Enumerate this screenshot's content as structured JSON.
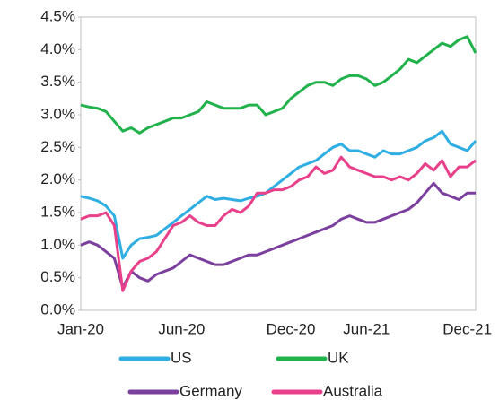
{
  "chart_data": {
    "type": "line",
    "categories": [
      "Jan-20",
      null,
      null,
      null,
      null,
      null,
      null,
      null,
      null,
      null,
      null,
      null,
      "Jun-20",
      null,
      null,
      null,
      null,
      null,
      null,
      null,
      null,
      null,
      null,
      null,
      null,
      "Dec-20",
      null,
      null,
      null,
      null,
      null,
      null,
      null,
      null,
      "Jun-21",
      null,
      null,
      null,
      null,
      null,
      null,
      null,
      null,
      null,
      null,
      null,
      "Dec-21",
      null
    ],
    "series": [
      {
        "name": "US",
        "color": "#2eaee3",
        "values": [
          1.75,
          1.72,
          1.68,
          1.6,
          1.45,
          0.8,
          1.0,
          1.1,
          1.12,
          1.15,
          1.25,
          1.35,
          1.45,
          1.55,
          1.65,
          1.75,
          1.7,
          1.72,
          1.7,
          1.68,
          1.72,
          1.75,
          1.8,
          1.9,
          2.0,
          2.1,
          2.2,
          2.25,
          2.3,
          2.4,
          2.5,
          2.55,
          2.45,
          2.45,
          2.4,
          2.35,
          2.45,
          2.4,
          2.4,
          2.45,
          2.5,
          2.6,
          2.65,
          2.75,
          2.55,
          2.5,
          2.45,
          2.6
        ]
      },
      {
        "name": "UK",
        "color": "#21b24b",
        "values": [
          3.15,
          3.12,
          3.1,
          3.05,
          2.9,
          2.75,
          2.8,
          2.72,
          2.8,
          2.85,
          2.9,
          2.95,
          2.95,
          3.0,
          3.05,
          3.2,
          3.15,
          3.1,
          3.1,
          3.1,
          3.15,
          3.15,
          3.0,
          3.05,
          3.1,
          3.25,
          3.35,
          3.45,
          3.5,
          3.5,
          3.45,
          3.55,
          3.6,
          3.6,
          3.55,
          3.45,
          3.5,
          3.6,
          3.7,
          3.85,
          3.8,
          3.9,
          4.0,
          4.1,
          4.05,
          4.15,
          4.2,
          3.95
        ]
      },
      {
        "name": "Germany",
        "color": "#7b3f9e",
        "values": [
          1.0,
          1.05,
          1.0,
          0.9,
          0.8,
          0.35,
          0.6,
          0.5,
          0.45,
          0.55,
          0.6,
          0.65,
          0.75,
          0.85,
          0.8,
          0.75,
          0.7,
          0.7,
          0.75,
          0.8,
          0.85,
          0.85,
          0.9,
          0.95,
          1.0,
          1.05,
          1.1,
          1.15,
          1.2,
          1.25,
          1.3,
          1.4,
          1.45,
          1.4,
          1.35,
          1.35,
          1.4,
          1.45,
          1.5,
          1.55,
          1.65,
          1.8,
          1.95,
          1.8,
          1.75,
          1.7,
          1.8,
          1.8
        ]
      },
      {
        "name": "Australia",
        "color": "#e8408a",
        "values": [
          1.4,
          1.45,
          1.45,
          1.5,
          1.3,
          0.3,
          0.6,
          0.75,
          0.8,
          0.9,
          1.1,
          1.3,
          1.35,
          1.45,
          1.35,
          1.3,
          1.3,
          1.45,
          1.55,
          1.5,
          1.6,
          1.8,
          1.8,
          1.85,
          1.85,
          1.9,
          2.0,
          2.05,
          2.2,
          2.1,
          2.15,
          2.35,
          2.2,
          2.15,
          2.1,
          2.05,
          2.05,
          2.0,
          2.05,
          2.0,
          2.1,
          2.25,
          2.15,
          2.3,
          2.05,
          2.2,
          2.2,
          2.3
        ]
      }
    ],
    "ylim": [
      0,
      4.5
    ],
    "yticks": [
      {
        "value": 0,
        "label": "0.0%"
      },
      {
        "value": 0.5,
        "label": "0.5%"
      },
      {
        "value": 1,
        "label": "1.0%"
      },
      {
        "value": 1.5,
        "label": "1.5%"
      },
      {
        "value": 2,
        "label": "2.0%"
      },
      {
        "value": 2.5,
        "label": "2.5%"
      },
      {
        "value": 3,
        "label": "3.0%"
      },
      {
        "value": 3.5,
        "label": "3.5%"
      },
      {
        "value": 4,
        "label": "4.0%"
      },
      {
        "value": 4.5,
        "label": "4.5%"
      }
    ]
  }
}
